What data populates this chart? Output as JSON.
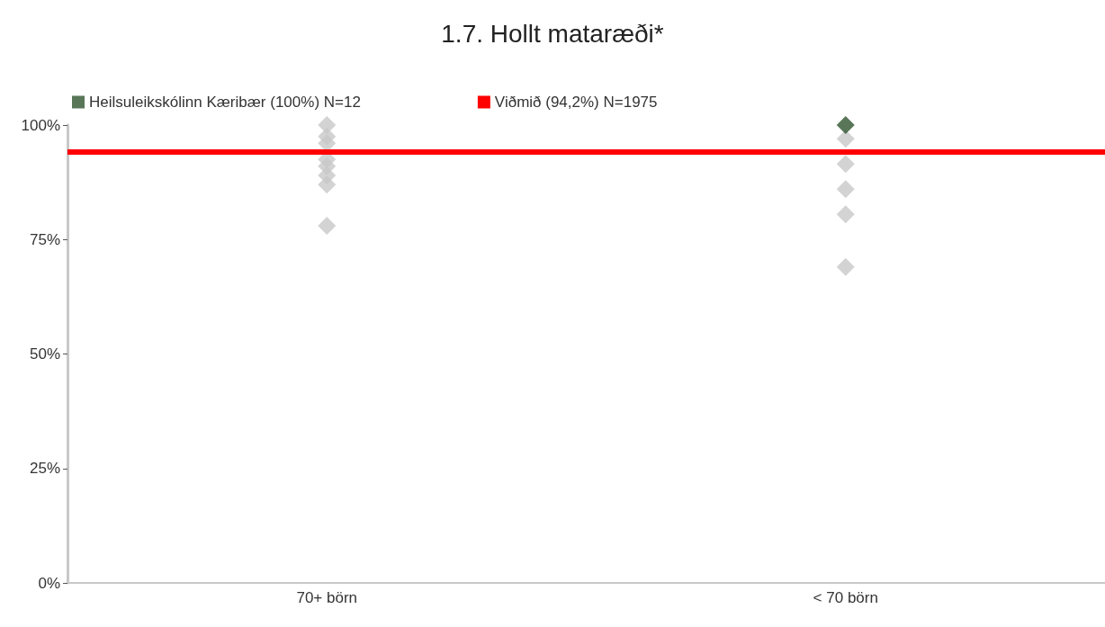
{
  "chart_data": {
    "type": "scatter",
    "title": "1.7. Hollt mataræði*",
    "categories": [
      "70+ börn",
      "< 70 börn"
    ],
    "series": [
      {
        "color": "#c8c8c8",
        "x": [
          "70+ börn",
          "70+ börn",
          "70+ börn",
          "70+ börn",
          "70+ börn",
          "70+ börn",
          "70+ börn",
          "70+ börn",
          "70+ börn",
          "< 70 börn",
          "< 70 börn",
          "< 70 börn",
          "< 70 börn",
          "< 70 börn",
          "< 70 börn"
        ],
        "values": [
          100,
          97.5,
          96,
          null,
          92.5,
          91,
          89,
          87,
          78,
          97,
          null,
          91.5,
          86,
          80.5,
          69
        ]
      },
      {
        "name": "Heilsuleikskólinn Kæribær (100%) N=12",
        "color": "#2f5430",
        "x": [
          "< 70 börn"
        ],
        "values": [
          100
        ]
      }
    ],
    "ref_lines": [
      {
        "axis": "y",
        "value": 94.2,
        "label": "Viðmið (94,2%) N=1975",
        "color": "#ff0000"
      }
    ],
    "ylim": [
      0,
      100
    ],
    "yticks": [
      {
        "value": 0,
        "label": "0%"
      },
      {
        "value": 25,
        "label": "25%"
      },
      {
        "value": 50,
        "label": "50%"
      },
      {
        "value": 75,
        "label": "75%"
      },
      {
        "value": 100,
        "label": "100%"
      }
    ],
    "marker": "diamond",
    "grid": false,
    "legend": "top left"
  }
}
